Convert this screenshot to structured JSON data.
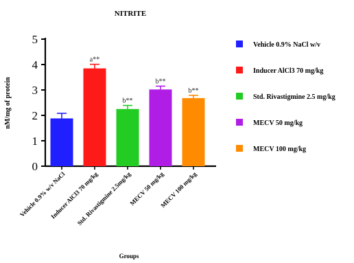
{
  "chart_data": {
    "type": "bar",
    "title": "NITRITE",
    "xlabel": "Groups",
    "ylabel": "nM/mg of protein",
    "ylim": [
      0,
      5
    ],
    "y_ticks": [
      "0",
      "1",
      "2",
      "3",
      "4",
      "5"
    ],
    "categories": [
      "Vehicle 0.9% w/v NaCl",
      "Inducer AlCl3 70 mg/kg",
      "Std. Rivastigmine 2.5mg/kg",
      "MECV 50 mg/kg",
      "MECV 100 mg/kg"
    ],
    "values": [
      1.88,
      3.85,
      2.25,
      3.02,
      2.68
    ],
    "errors": [
      0.2,
      0.16,
      0.14,
      0.13,
      0.11
    ],
    "annotations": [
      "",
      "a**",
      "b**",
      "b**",
      "b**"
    ],
    "colors": [
      "#1f1fff",
      "#ff1a1a",
      "#22cc22",
      "#b01ee6",
      "#ff8c00"
    ],
    "legend_placement": "right",
    "legend": [
      {
        "label": "Vehicle 0.9% NaCl w/v",
        "color": "#1f1fff"
      },
      {
        "label": "Inducer AlCl3 70 mg/kg",
        "color": "#ff1a1a"
      },
      {
        "label": "Std. Rivastigmine 2.5 mg/kg",
        "color": "#22cc22"
      },
      {
        "label": "MECV 50 mg/kg",
        "color": "#b01ee6"
      },
      {
        "label": "MECV 100 mg/kg",
        "color": "#ff8c00"
      }
    ],
    "grid": false
  }
}
